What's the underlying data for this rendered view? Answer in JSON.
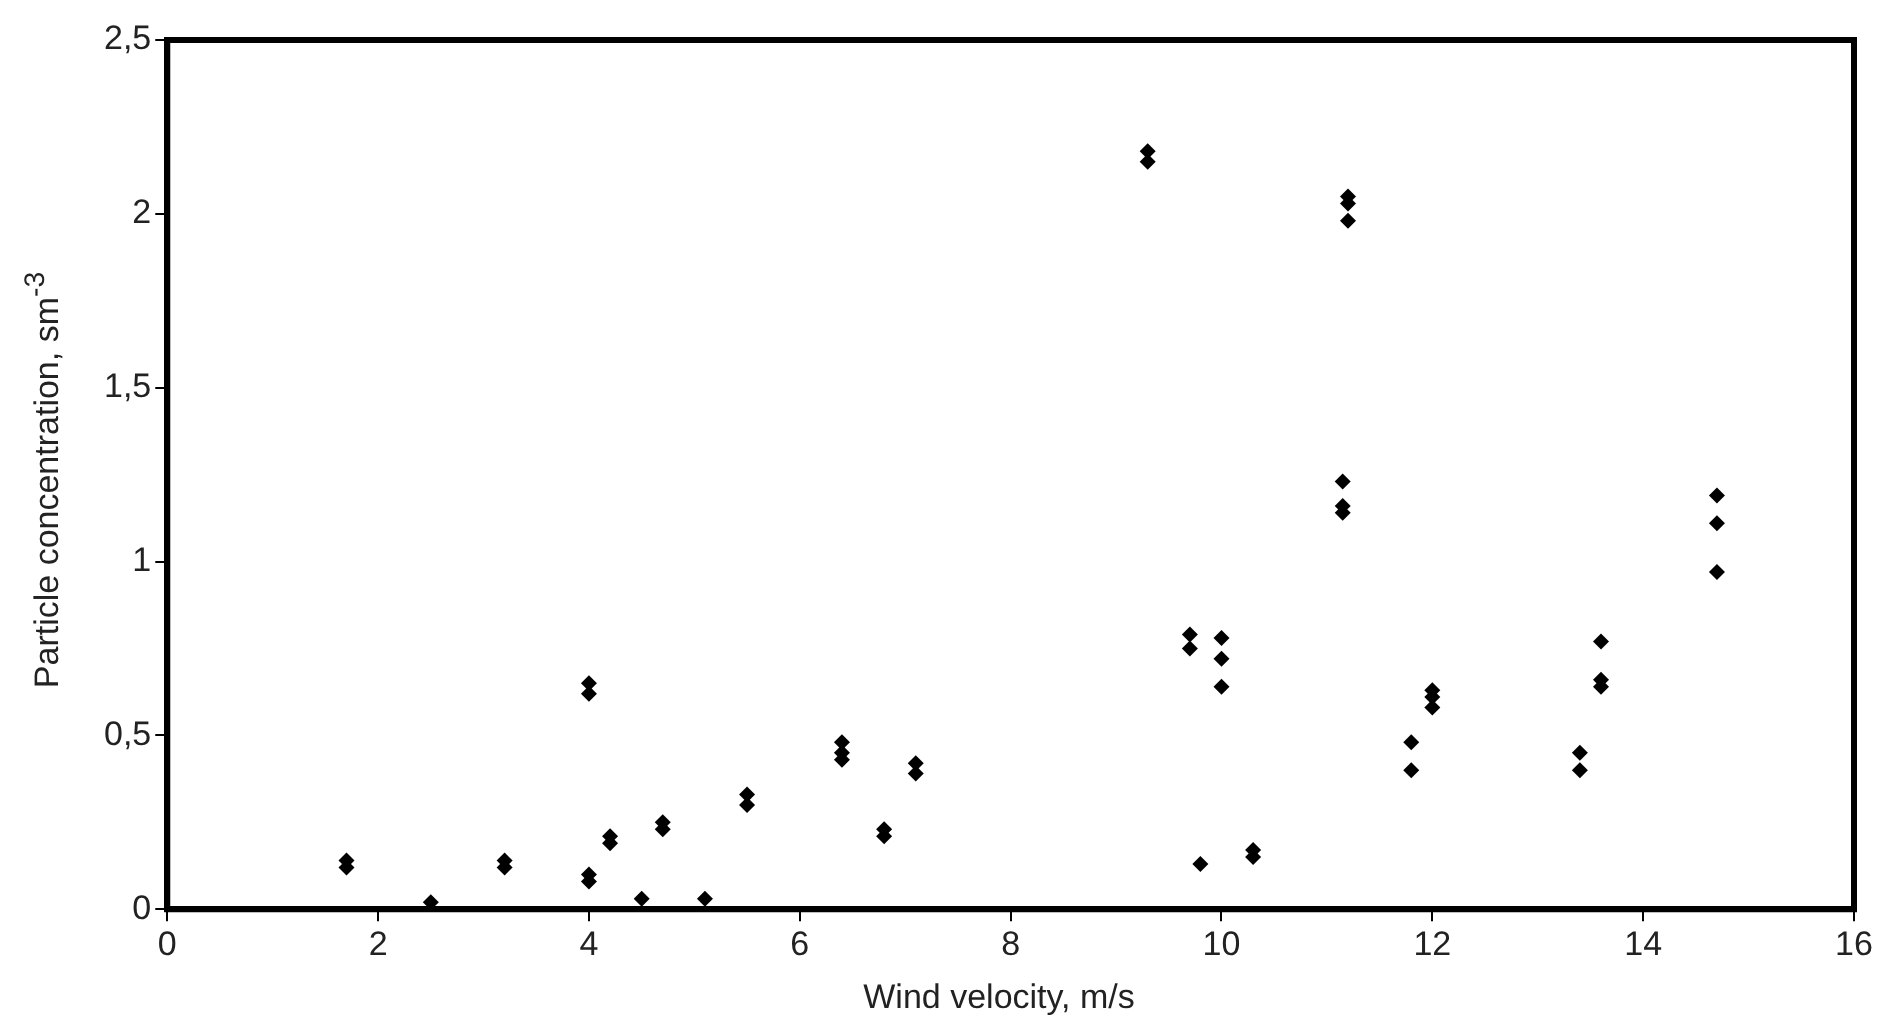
{
  "chart_data": {
    "type": "scatter",
    "xlabel": "Wind velocity, m/s",
    "ylabel": "Particle concentration, sm$^{-3}$",
    "x": [
      1.7,
      1.7,
      2.5,
      3.2,
      3.2,
      4.0,
      4.0,
      4.0,
      4.0,
      4.2,
      4.2,
      4.5,
      4.7,
      4.7,
      5.1,
      5.5,
      5.5,
      6.4,
      6.4,
      6.4,
      6.8,
      6.8,
      7.1,
      7.1,
      9.3,
      9.3,
      9.7,
      9.7,
      9.8,
      10.0,
      10.0,
      10.0,
      10.3,
      10.3,
      11.15,
      11.15,
      11.15,
      11.2,
      11.2,
      11.2,
      11.8,
      11.8,
      12.0,
      12.0,
      12.0,
      13.4,
      13.4,
      13.6,
      13.6,
      13.6,
      14.7,
      14.7,
      14.7
    ],
    "values": [
      0.14,
      0.12,
      0.02,
      0.14,
      0.12,
      0.65,
      0.62,
      0.1,
      0.08,
      0.21,
      0.19,
      0.03,
      0.25,
      0.23,
      0.03,
      0.33,
      0.3,
      0.48,
      0.45,
      0.43,
      0.23,
      0.21,
      0.42,
      0.39,
      2.18,
      2.15,
      0.79,
      0.75,
      0.13,
      0.78,
      0.72,
      0.64,
      0.17,
      0.15,
      1.23,
      1.16,
      1.14,
      2.05,
      2.03,
      1.98,
      0.48,
      0.4,
      0.63,
      0.61,
      0.58,
      0.45,
      0.4,
      0.77,
      0.66,
      0.64,
      1.19,
      1.11,
      0.97
    ],
    "color": "#000000",
    "marker": "diamond",
    "xlim": [
      0,
      16
    ],
    "xticks": [
      0,
      2,
      4,
      6,
      8,
      10,
      12,
      14,
      16
    ],
    "ylim": [
      0,
      2.5
    ],
    "yticks": [
      0,
      {
        "value": 0.5,
        "label": "0,5"
      },
      1,
      {
        "value": 1.5,
        "label": "1,5"
      },
      2,
      {
        "value": 2.5,
        "label": "2,5"
      }
    ],
    "grid": false,
    "legend": false
  }
}
